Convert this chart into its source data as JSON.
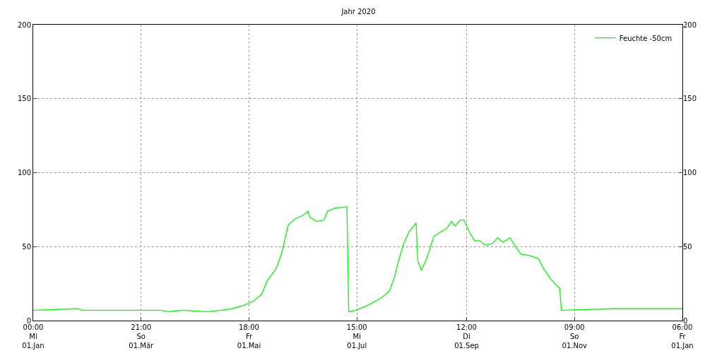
{
  "chart_data": {
    "type": "line",
    "title": "Jahr 2020",
    "x": [
      "2020-01-01",
      "2020-01-26",
      "2020-01-29",
      "2020-03-13",
      "2020-03-17",
      "2020-03-25",
      "2020-04-08",
      "2020-04-16",
      "2020-04-22",
      "2020-04-28",
      "2020-05-04",
      "2020-05-09",
      "2020-05-12",
      "2020-05-17",
      "2020-05-20",
      "2020-05-22",
      "2020-05-24",
      "2020-05-28",
      "2020-06-01",
      "2020-06-04",
      "2020-06-05",
      "2020-06-09",
      "2020-06-13",
      "2020-06-15",
      "2020-06-19",
      "2020-06-26",
      "2020-06-27",
      "2020-07-01",
      "2020-07-07",
      "2020-07-15",
      "2020-07-20",
      "2020-07-23",
      "2020-07-25",
      "2020-07-28",
      "2020-07-31",
      "2020-08-04",
      "2020-08-05",
      "2020-08-07",
      "2020-08-10",
      "2020-08-14",
      "2020-08-18",
      "2020-08-21",
      "2020-08-24",
      "2020-08-26",
      "2020-08-29",
      "2020-08-31",
      "2020-09-03",
      "2020-09-06",
      "2020-09-09",
      "2020-09-12",
      "2020-09-16",
      "2020-09-19",
      "2020-09-22",
      "2020-09-26",
      "2020-09-29",
      "2020-10-02",
      "2020-10-07",
      "2020-10-12",
      "2020-10-15",
      "2020-10-19",
      "2020-10-23",
      "2020-10-24",
      "2020-10-25",
      "2020-11-24",
      "2021-01-01T06:00"
    ],
    "series": [
      {
        "name": "Feuchte -50cm",
        "color": "#00ff00",
        "values": [
          7,
          8,
          7,
          7,
          6,
          7,
          6,
          7,
          8,
          10,
          13,
          18,
          27,
          35,
          45,
          55,
          65,
          69,
          71,
          74,
          70,
          67,
          68,
          74,
          76,
          77,
          6,
          7,
          10,
          15,
          20,
          30,
          40,
          52,
          60,
          66,
          40,
          34,
          42,
          57,
          60,
          62,
          67,
          64,
          68,
          68,
          60,
          54,
          54,
          51,
          52,
          56,
          53,
          56,
          50,
          45,
          44,
          42,
          35,
          28,
          23,
          22,
          7,
          8,
          8
        ]
      }
    ],
    "xlim": [
      "2020-01-01T00:00",
      "2021-01-01T06:00"
    ],
    "xticks": [
      {
        "value": "2020-01-01T00:00",
        "label": "00:00\nMi\n01.Jan"
      },
      {
        "value": "2020-03-01T21:00",
        "label": "21:00\nSo\n01.Mär"
      },
      {
        "value": "2020-05-01T18:00",
        "label": "18:00\nFr\n01.Mai"
      },
      {
        "value": "2020-07-01T15:00",
        "label": "15:00\nMi\n01.Jul"
      },
      {
        "value": "2020-09-01T12:00",
        "label": "12:00\nDi\n01.Sep"
      },
      {
        "value": "2020-11-01T09:00",
        "label": "09:00\nSo\n01.Nov"
      },
      {
        "value": "2021-01-01T06:00",
        "label": "06:00\nFr\n01.Jan"
      }
    ],
    "ylim": [
      0,
      200
    ],
    "yticks": [
      0,
      50,
      100,
      150,
      200
    ],
    "y2lim": [
      0,
      200
    ],
    "y2ticks": [
      0,
      50,
      100,
      150,
      200
    ],
    "grid": true,
    "legend": "top right",
    "line_style": "solid",
    "marker": "none"
  }
}
